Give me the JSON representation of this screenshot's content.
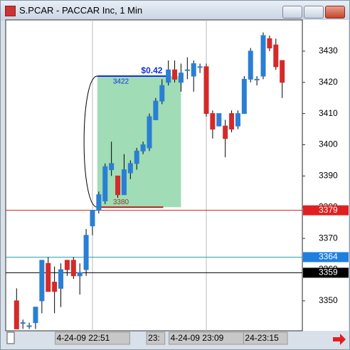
{
  "window_title": "S.PCAR - PACCAR Inc, 1 Min",
  "chart_data": {
    "type": "candlestick",
    "categories": [
      null,
      null,
      null,
      null,
      null,
      null,
      null,
      null,
      null,
      null,
      null,
      null,
      "4-24-09  22:51",
      null,
      null,
      null,
      null,
      null,
      null,
      null,
      null,
      null,
      "23:",
      null,
      null,
      null,
      null,
      null,
      null,
      null,
      "4-24-09  23:09",
      null,
      null,
      null,
      null,
      null,
      "24-23:15",
      null,
      null,
      null,
      null,
      null,
      null
    ],
    "open": [
      3350,
      3343,
      3342,
      3343,
      3350,
      3362,
      3356,
      3354,
      3363,
      3363,
      3358,
      3360,
      3374,
      3379,
      3382,
      3392,
      3390,
      3384,
      3391,
      3394,
      3398,
      3399,
      3408,
      3414,
      3420,
      3424,
      3420,
      3424,
      3422,
      3425,
      3425,
      3410,
      3406,
      3406,
      3410,
      3406,
      3410,
      3421,
      3421,
      3422,
      3434,
      3432,
      3427
    ],
    "high": [
      3354,
      3344,
      3343,
      3348,
      3363,
      3364,
      3361,
      3362,
      3363,
      3364,
      3362,
      3373,
      3379,
      3385,
      3394,
      3401,
      3390,
      3397,
      3395,
      3399,
      3401,
      3410,
      3415,
      3421,
      3427,
      3427,
      3426,
      3428,
      3427,
      3426,
      3426,
      3411,
      3410,
      3408,
      3411,
      3411,
      3422,
      3431,
      3422,
      3436,
      3435,
      3434,
      3427
    ],
    "low": [
      3341,
      3341,
      3341,
      3341,
      3346,
      3353,
      3346,
      3348,
      3358,
      3357,
      3352,
      3358,
      3371,
      3378,
      3381,
      3390,
      3383,
      3384,
      3389,
      3392,
      3397,
      3398,
      3408,
      3413,
      3419,
      3420,
      3417,
      3421,
      3417,
      3423,
      3409,
      3402,
      3406,
      3396,
      3404,
      3405,
      3410,
      3420,
      3419,
      3421,
      3430,
      3424,
      3415
    ],
    "close": [
      3341,
      3343,
      3342,
      3348,
      3363,
      3353,
      3353,
      3360,
      3360,
      3358,
      3359,
      3371,
      3379,
      3384,
      3393,
      3394,
      3384,
      3392,
      3394,
      3398,
      3400,
      3409,
      3414,
      3419,
      3424,
      3421,
      3423,
      3424,
      3426,
      3425,
      3410,
      3405,
      3410,
      3402,
      3405,
      3410,
      3421,
      3430,
      3421,
      3435,
      3431,
      3425,
      3420
    ],
    "up_color": "#2a7fd4",
    "down_color": "#d42a2a",
    "ylim": [
      3340.4,
      3440
    ],
    "yticks": [
      3350,
      3360,
      3370,
      3380,
      3390,
      3400,
      3410,
      3420,
      3430
    ],
    "price_lines": [
      {
        "value": 3379,
        "color": "#cc2222",
        "label_bg": "#e02020"
      },
      {
        "value": 3364,
        "color": "#22a6b8",
        "label_bg": "#1e7fe0"
      },
      {
        "value": 3359,
        "color": "#000000",
        "label_bg": "#000000"
      }
    ],
    "measure": {
      "start": 3380,
      "end": 3422,
      "label": "$0.42",
      "from_index": 13,
      "to_index": 26,
      "color": "#8fd6a8"
    }
  }
}
